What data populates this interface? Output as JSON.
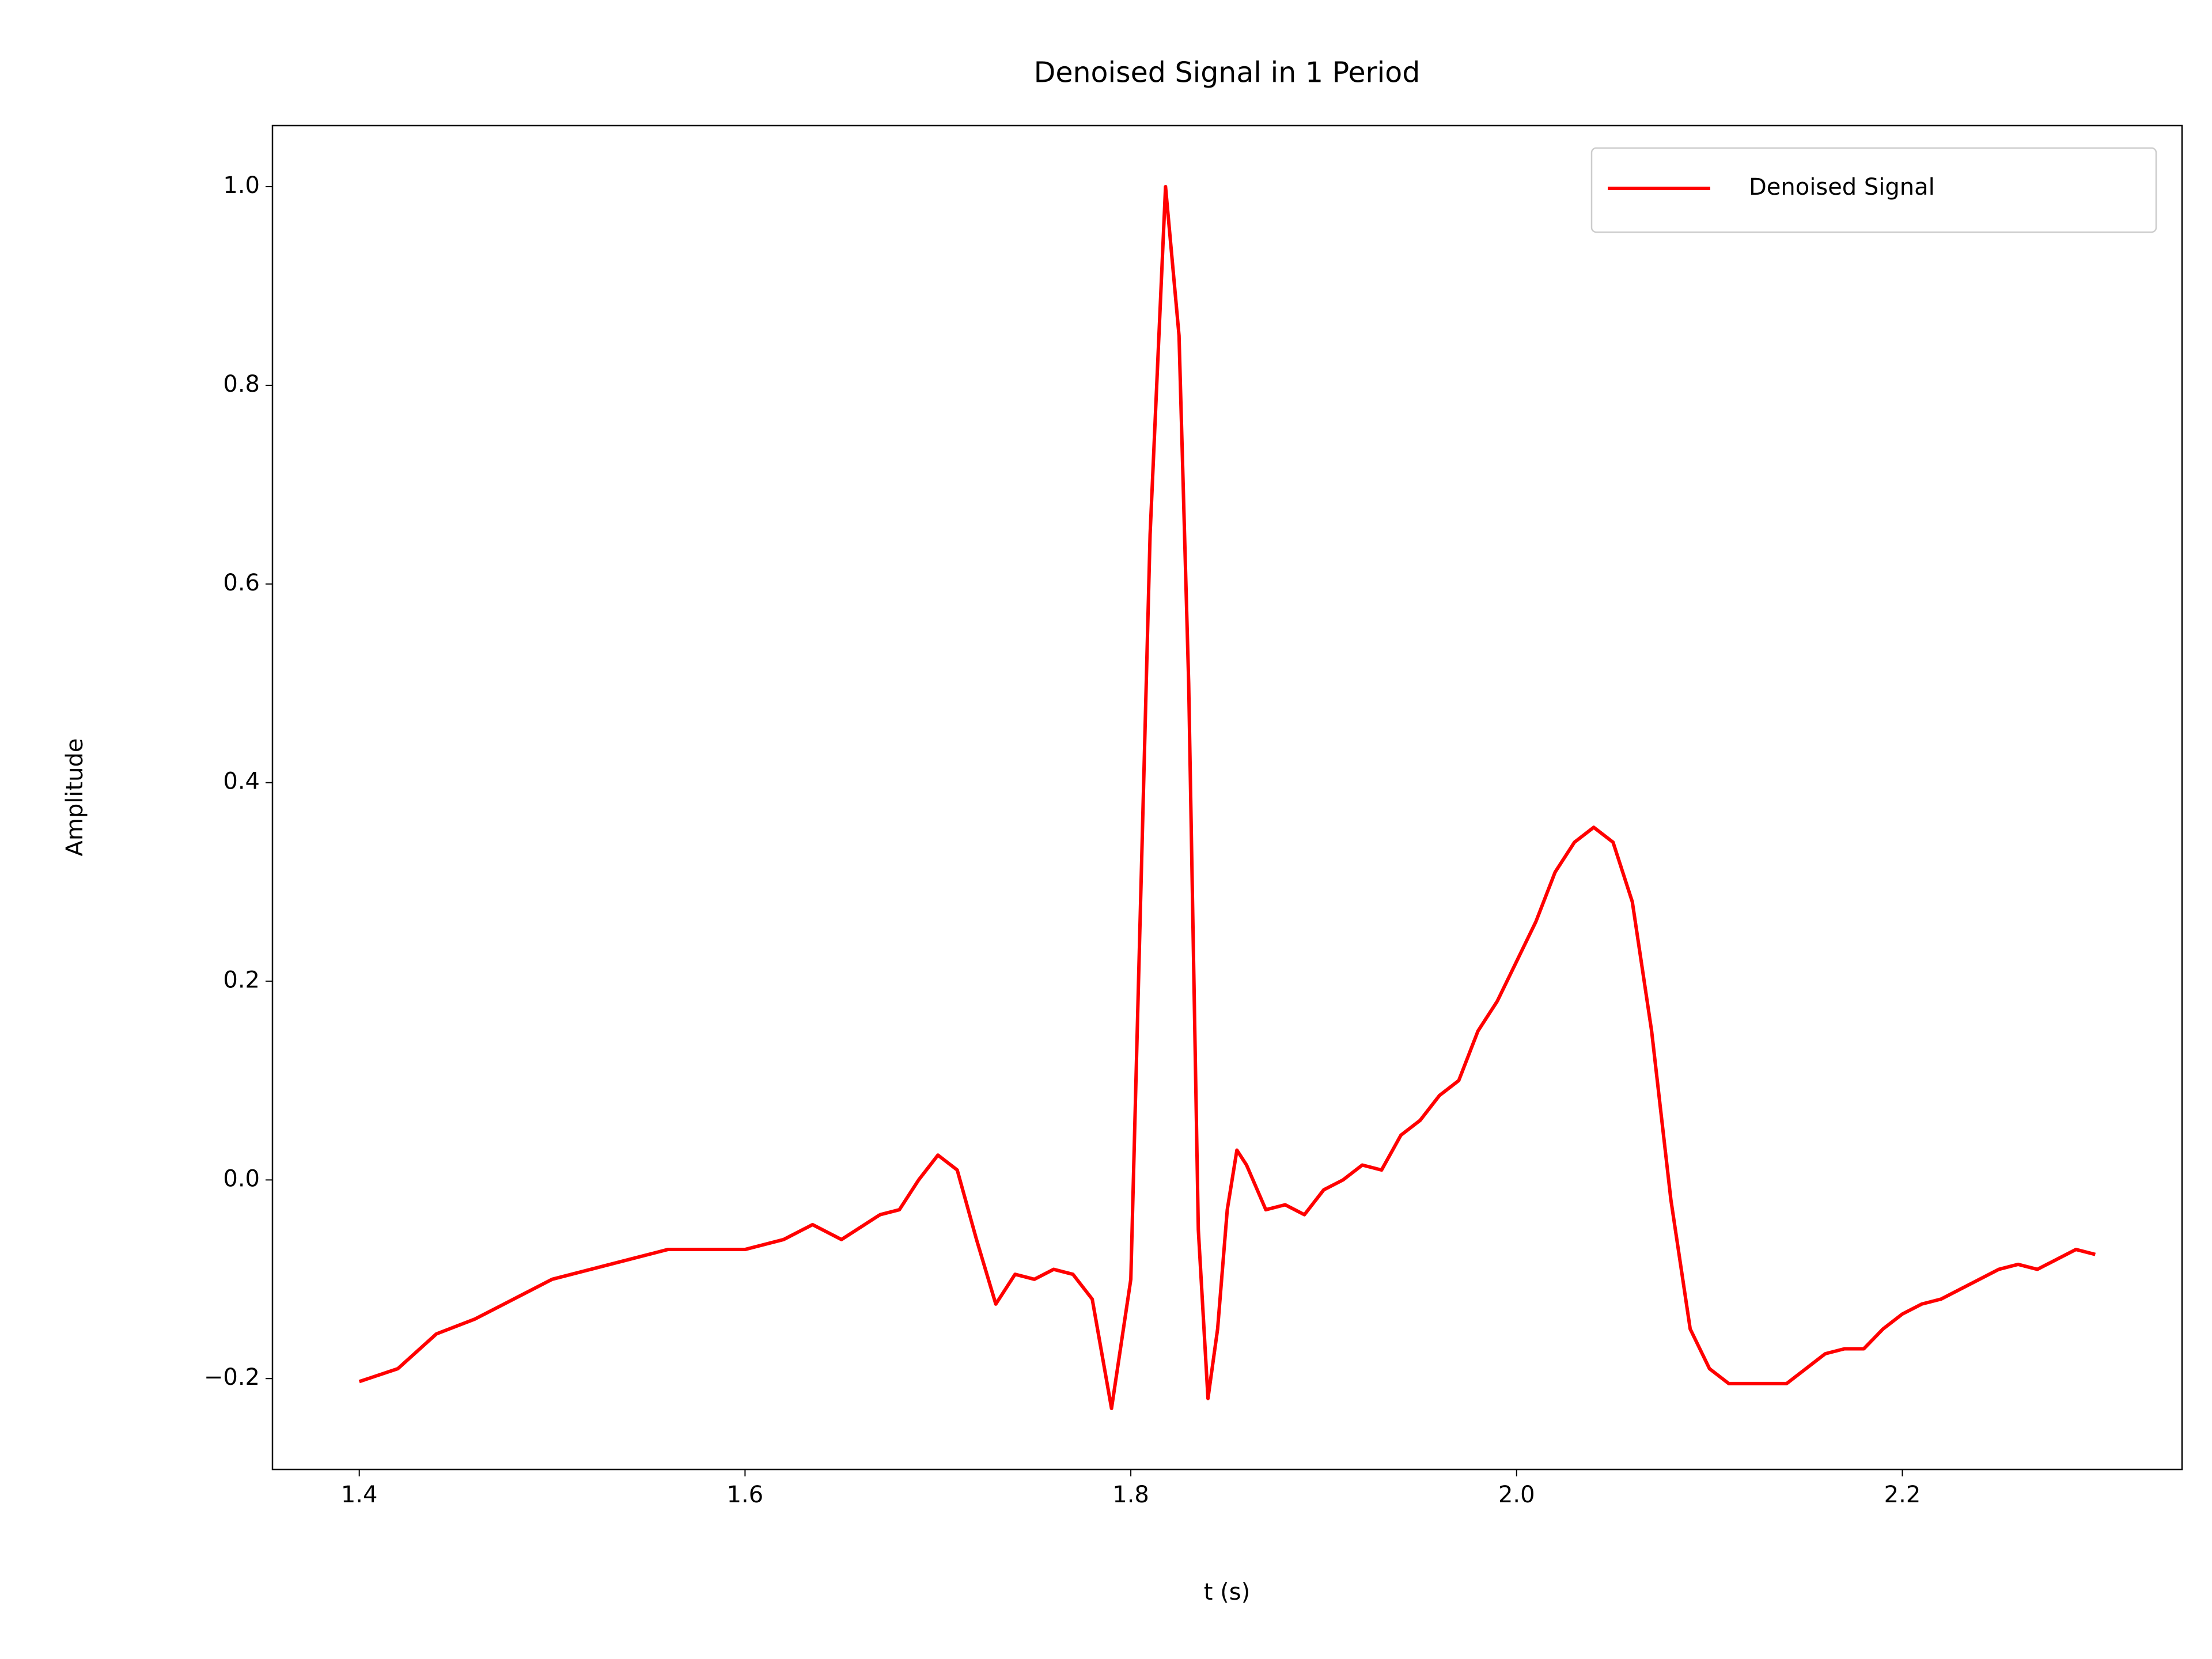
{
  "chart_data": {
    "type": "line",
    "title": "Denoised Signal in 1 Period",
    "x_label": "t (s)",
    "y_label": "Amplitude",
    "x": [
      1.4,
      1.42,
      1.44,
      1.46,
      1.48,
      1.5,
      1.52,
      1.54,
      1.56,
      1.58,
      1.6,
      1.62,
      1.635,
      1.65,
      1.67,
      1.68,
      1.69,
      1.7,
      1.71,
      1.72,
      1.73,
      1.74,
      1.75,
      1.76,
      1.77,
      1.78,
      1.79,
      1.8,
      1.81,
      1.818,
      1.825,
      1.83,
      1.835,
      1.84,
      1.845,
      1.85,
      1.855,
      1.86,
      1.87,
      1.88,
      1.89,
      1.9,
      1.91,
      1.92,
      1.93,
      1.94,
      1.95,
      1.96,
      1.97,
      1.98,
      1.99,
      2.0,
      2.01,
      2.02,
      2.03,
      2.04,
      2.05,
      2.06,
      2.07,
      2.08,
      2.09,
      2.1,
      2.11,
      2.12,
      2.13,
      2.14,
      2.15,
      2.16,
      2.17,
      2.18,
      2.19,
      2.2,
      2.21,
      2.22,
      2.23,
      2.24,
      2.25,
      2.26,
      2.27,
      2.28,
      2.29,
      2.3
    ],
    "series": [
      {
        "name": "Denoised Signal",
        "color": "#ff0000",
        "values": [
          -0.203,
          -0.19,
          -0.155,
          -0.14,
          -0.12,
          -0.1,
          -0.09,
          -0.08,
          -0.07,
          -0.07,
          -0.07,
          -0.06,
          -0.045,
          -0.06,
          -0.035,
          -0.03,
          0.0,
          0.025,
          0.01,
          -0.06,
          -0.125,
          -0.095,
          -0.1,
          -0.09,
          -0.095,
          -0.12,
          -0.23,
          -0.1,
          0.65,
          1.0,
          0.85,
          0.5,
          -0.05,
          -0.22,
          -0.15,
          -0.03,
          0.03,
          0.015,
          -0.03,
          -0.025,
          -0.035,
          -0.01,
          0.0,
          0.015,
          0.01,
          0.045,
          0.06,
          0.085,
          0.1,
          0.15,
          0.18,
          0.22,
          0.26,
          0.31,
          0.34,
          0.355,
          0.34,
          0.28,
          0.15,
          -0.02,
          -0.15,
          -0.19,
          -0.205,
          -0.205,
          -0.205,
          -0.205,
          -0.19,
          -0.175,
          -0.17,
          -0.17,
          -0.15,
          -0.135,
          -0.125,
          -0.12,
          -0.11,
          -0.1,
          -0.09,
          -0.085,
          -0.09,
          -0.08,
          -0.07,
          -0.075
        ]
      }
    ],
    "xlim": [
      1.355,
      2.345
    ],
    "ylim": [
      -0.2915,
      1.0615
    ],
    "xticks": [
      1.4,
      1.6,
      1.8,
      {
        "value": 2.0,
        "label": "2.0"
      },
      2.2
    ],
    "yticks": [
      {
        "value": -0.2,
        "label": "−0.2"
      },
      {
        "value": 0.0,
        "label": "0.0"
      },
      0.2,
      0.4,
      0.6,
      0.8,
      {
        "value": 1.0,
        "label": "1.0"
      }
    ],
    "grid": false,
    "legend": "upper right"
  }
}
